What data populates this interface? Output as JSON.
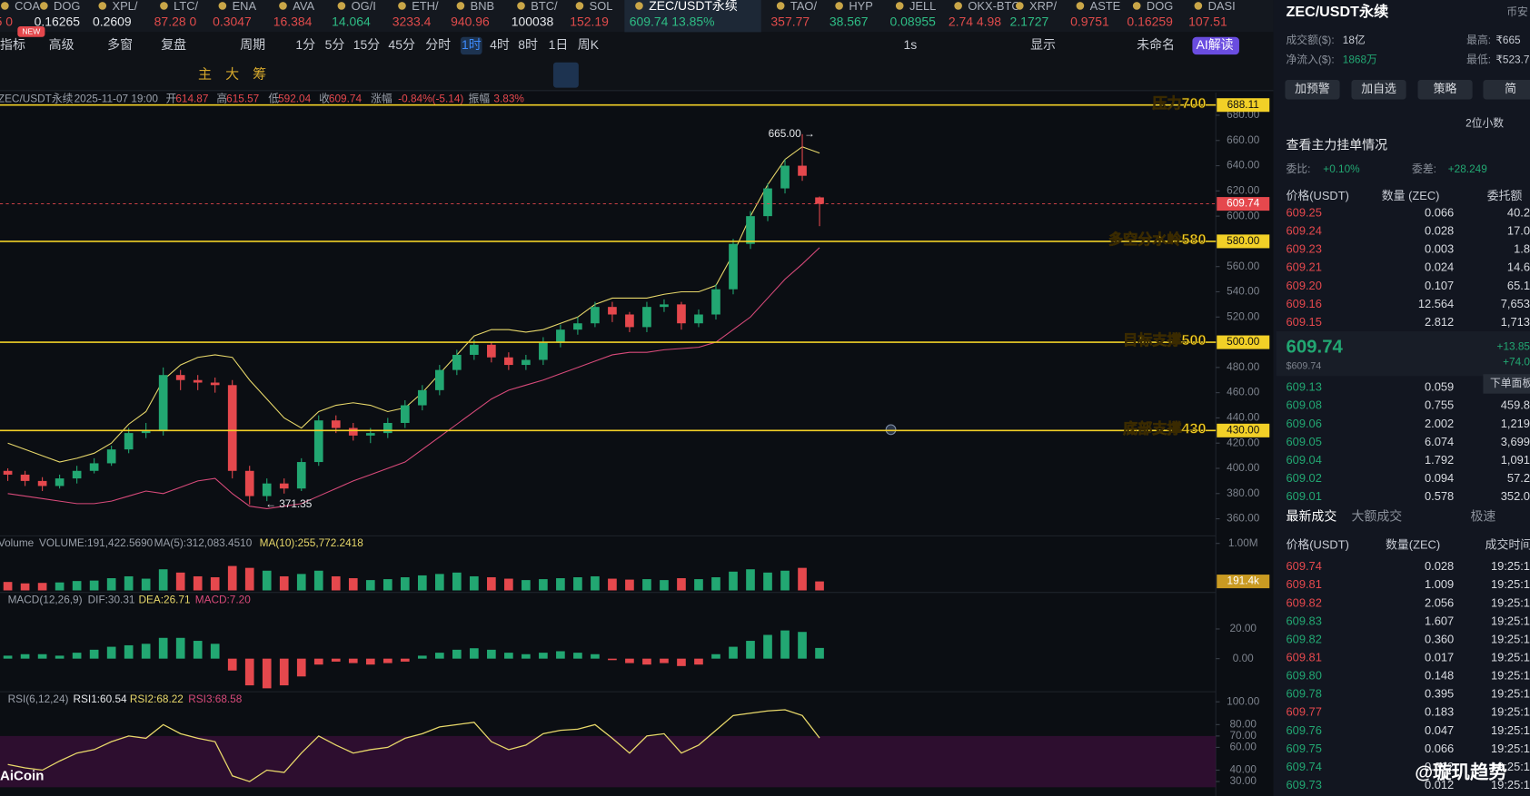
{
  "ticker": [
    {
      "name": "COA",
      "price": "5 0",
      "color": "#e04b4b"
    },
    {
      "name": "DOG",
      "price": "0.16265",
      "color": "#e6e8eb"
    },
    {
      "name": "XPL/",
      "price": "0.2609",
      "color": "#e6e8eb"
    },
    {
      "name": "LTC/",
      "price": "87.28 0",
      "color": "#e04b4b"
    },
    {
      "name": "ENA",
      "price": "0.3047",
      "color": "#e04b4b"
    },
    {
      "name": "AVA",
      "price": "16.384",
      "color": "#e04b4b"
    },
    {
      "name": "OG/I",
      "price": "14.064",
      "color": "#2ebd85"
    },
    {
      "name": "ETH/",
      "price": "3233.4",
      "color": "#e04b4b"
    },
    {
      "name": "BNB",
      "price": "940.96",
      "color": "#e04b4b"
    },
    {
      "name": "BTC/",
      "price": "100038",
      "color": "#e6e8eb"
    },
    {
      "name": "SOL",
      "price": "152.19",
      "color": "#e04b4b"
    },
    {
      "name": "ZEC/USDT永续",
      "price": "609.74 13.85%",
      "color": "#2ebd85"
    },
    {
      "name": "TAO/",
      "price": "357.77",
      "color": "#e04b4b"
    },
    {
      "name": "HYP",
      "price": "38.567",
      "color": "#2ebd85"
    },
    {
      "name": "JELL",
      "price": "0.08955",
      "color": "#2ebd85"
    },
    {
      "name": "OKX-BTC",
      "price": "2.74 4.98",
      "color": "#e04b4b"
    },
    {
      "name": "XRP/",
      "price": "2.1727",
      "color": "#2ebd85"
    },
    {
      "name": "ASTE",
      "price": "0.9751",
      "color": "#e04b4b"
    },
    {
      "name": "DOG",
      "price": "0.16259",
      "color": "#e04b4b"
    },
    {
      "name": "DASI",
      "price": "107.51",
      "color": "#e04b4b"
    }
  ],
  "badge": "NEW",
  "toolbar": {
    "items": [
      "指标",
      "高级",
      "多窗",
      "复盘",
      "周期",
      "1分",
      "5分",
      "15分",
      "45分",
      "分时",
      "1时",
      "4时",
      "8时",
      "1日",
      "周K",
      "1s",
      "显示",
      "未命名",
      "AI解读"
    ],
    "layers": [
      "主",
      "大",
      "筹"
    ]
  },
  "chart_data": [
    {
      "type": "candlestick",
      "info": {
        "symbol": "ZEC/USDT永续",
        "time": "2025-11-07 19:00",
        "open_label": "开",
        "high_label": "高",
        "low_label": "低",
        "close_label": "收",
        "change_label": "涨幅",
        "change": "-0.84%(-5.14)",
        "amp_label": "振幅",
        "amp": "3.83%"
      },
      "candles": {
        "open": [
          398,
          395,
          390,
          386,
          392,
          398,
          404,
          415,
          428,
          430,
          474,
          470,
          468,
          466,
          398,
          378,
          388,
          384,
          405,
          438,
          432,
          426,
          428,
          436,
          450,
          462,
          478,
          490,
          498,
          488,
          482,
          486,
          500,
          510,
          515,
          528,
          522,
          512,
          528,
          530,
          515,
          522,
          542,
          578,
          600,
          622,
          640,
          614.87
        ],
        "high": [
          400,
          398,
          393,
          395,
          402,
          408,
          418,
          432,
          436,
          480,
          478,
          474,
          472,
          470,
          402,
          392,
          392,
          408,
          442,
          442,
          436,
          432,
          440,
          454,
          466,
          482,
          494,
          502,
          500,
          492,
          490,
          504,
          514,
          520,
          532,
          532,
          524,
          532,
          534,
          532,
          526,
          546,
          582,
          604,
          626,
          645,
          665,
          615.57
        ],
        "low": [
          390,
          386,
          382,
          384,
          388,
          396,
          402,
          412,
          424,
          426,
          462,
          462,
          460,
          392,
          371.35,
          374,
          380,
          382,
          402,
          428,
          422,
          420,
          424,
          432,
          446,
          458,
          474,
          486,
          484,
          478,
          478,
          482,
          496,
          506,
          512,
          516,
          508,
          508,
          524,
          510,
          512,
          518,
          538,
          574,
          596,
          618,
          628,
          592.04
        ],
        "close": [
          395,
          390,
          386,
          392,
          398,
          404,
          415,
          428,
          430,
          474,
          470,
          468,
          466,
          398,
          378,
          388,
          384,
          405,
          438,
          432,
          426,
          428,
          436,
          450,
          462,
          478,
          490,
          498,
          488,
          482,
          486,
          500,
          510,
          515,
          528,
          522,
          512,
          528,
          530,
          515,
          522,
          542,
          578,
          600,
          622,
          640,
          632,
          609.74
        ]
      },
      "boll_upper": [
        420,
        415,
        410,
        405,
        408,
        412,
        420,
        435,
        445,
        470,
        482,
        488,
        490,
        488,
        470,
        455,
        440,
        432,
        445,
        450,
        452,
        450,
        445,
        448,
        460,
        475,
        490,
        505,
        510,
        510,
        508,
        510,
        515,
        520,
        530,
        535,
        535,
        535,
        538,
        540,
        540,
        545,
        570,
        600,
        625,
        645,
        655,
        650
      ],
      "boll_lower": [
        380,
        378,
        376,
        374,
        372,
        372,
        374,
        378,
        382,
        380,
        385,
        390,
        392,
        380,
        370,
        368,
        370,
        372,
        378,
        384,
        390,
        395,
        400,
        405,
        415,
        425,
        435,
        445,
        455,
        462,
        466,
        470,
        475,
        480,
        485,
        490,
        492,
        492,
        494,
        495,
        496,
        500,
        510,
        520,
        535,
        550,
        562,
        575
      ],
      "up_color": "#22a772",
      "down_color": "#e5484d",
      "boll_color": "#e8d86a",
      "lower_color": "#d84a7a",
      "levels": [
        {
          "name": "压力700",
          "value": 688.11,
          "label": "688.11"
        },
        {
          "name": "多空分水岭580",
          "value": 580,
          "label": "580.00"
        },
        {
          "name": "目标支撑500",
          "value": 500,
          "label": "500.00"
        },
        {
          "name": "底部支撑430",
          "value": 430,
          "label": "430.00"
        }
      ],
      "level_color": "#f2d027",
      "annotations": [
        {
          "value": 665,
          "label": "665.00 →"
        },
        {
          "value": 371.35,
          "label": "← 371.35"
        }
      ],
      "ylim": [
        348,
        698
      ],
      "yticks": [
        {
          "value": 680,
          "label": "680.00"
        },
        {
          "value": 660,
          "label": "660.00"
        },
        {
          "value": 640,
          "label": "640.00"
        },
        {
          "value": 620,
          "label": "620.00"
        },
        {
          "value": 600,
          "label": "600.00"
        },
        {
          "value": 580,
          "label": "580.00"
        },
        {
          "value": 560,
          "label": "560.00"
        },
        {
          "value": 540,
          "label": "540.00"
        },
        {
          "value": 520,
          "label": "520.00"
        },
        {
          "value": 500,
          "label": "500.00"
        },
        {
          "value": 480,
          "label": "480.00"
        },
        {
          "value": 460,
          "label": "460.00"
        },
        {
          "value": 440,
          "label": "440.00"
        },
        {
          "value": 420,
          "label": "420.00"
        },
        {
          "value": 400,
          "label": "400.00"
        },
        {
          "value": 380,
          "label": "380.00"
        },
        {
          "value": 360,
          "label": "360.00"
        }
      ]
    },
    {
      "type": "bar",
      "info": [
        "Volume",
        "VOLUME:191,422.5690",
        "MA(5):312,083.4510",
        "MA(10):255,772.2418"
      ],
      "values": [
        180000,
        150000,
        160000,
        170000,
        200000,
        210000,
        260000,
        300000,
        250000,
        450000,
        380000,
        300000,
        280000,
        520000,
        480000,
        420000,
        300000,
        350000,
        420000,
        300000,
        260000,
        220000,
        240000,
        280000,
        320000,
        350000,
        380000,
        300000,
        280000,
        250000,
        220000,
        240000,
        260000,
        280000,
        300000,
        250000,
        230000,
        240000,
        220000,
        260000,
        240000,
        280000,
        400000,
        450000,
        380000,
        420000,
        480000,
        191422.569
      ],
      "last_label": "191.4k",
      "ylim": [
        0,
        1140000
      ],
      "yticks": [
        {
          "value": 1000000,
          "label": "1.00M"
        }
      ]
    },
    {
      "type": "bar",
      "info": [
        "MACD(12,26,9)",
        "DIF:30.31",
        "DEA:26.71",
        "MACD:7.20"
      ],
      "values": [
        2,
        3,
        3,
        2,
        4,
        6,
        8,
        9,
        10,
        14,
        14,
        12,
        10,
        -8,
        -18,
        -20,
        -18,
        -12,
        -4,
        -2,
        -3,
        -4,
        -3,
        -2,
        2,
        4,
        6,
        7,
        6,
        4,
        3,
        4,
        5,
        4,
        3,
        -1,
        -3,
        -4,
        -3,
        -5,
        -4,
        3,
        8,
        12,
        16,
        19,
        18,
        7.2
      ],
      "ylim": [
        -21,
        44
      ],
      "yticks": [
        {
          "value": 20,
          "label": "20.00"
        },
        {
          "value": 0,
          "label": "0.00"
        }
      ]
    },
    {
      "type": "line",
      "info": [
        "RSI(6,12,24)",
        "RSI1:60.54",
        "RSI2:68.22",
        "RSI3:68.58"
      ],
      "values": [
        45,
        42,
        40,
        48,
        55,
        58,
        65,
        70,
        68,
        80,
        72,
        68,
        65,
        35,
        30,
        40,
        38,
        55,
        70,
        62,
        55,
        58,
        60,
        68,
        72,
        78,
        80,
        82,
        65,
        58,
        62,
        72,
        75,
        76,
        80,
        68,
        55,
        70,
        72,
        55,
        62,
        75,
        88,
        90,
        92,
        93,
        88,
        68.22
      ],
      "color": "#e8d86a",
      "ylim": [
        25,
        108
      ],
      "yticks": [
        {
          "value": 100,
          "label": "100.00"
        },
        {
          "value": 80,
          "label": "80.00"
        },
        {
          "value": 70,
          "label": "70.00"
        },
        {
          "value": 60,
          "label": "60.00"
        },
        {
          "value": 40,
          "label": "40.00"
        },
        {
          "value": 30,
          "label": "30.00"
        }
      ]
    }
  ],
  "side": {
    "title": "ZEC/USDT永续",
    "exchange": "币安",
    "stats": [
      {
        "label": "成交额($):",
        "value": "18亿"
      },
      {
        "label": "最高:",
        "value": "₹665"
      },
      {
        "label": "净流入($):",
        "value": "1868万"
      },
      {
        "label": "最低:",
        "value": "₹523.7"
      }
    ],
    "buttons": [
      "加预警",
      "加自选",
      "策略",
      "简"
    ],
    "decimals": "2位小数",
    "depth_link": "查看主力挂单情况",
    "ratio": {
      "label": "委比:",
      "value": "+0.10%"
    },
    "diff": {
      "label": "委差:",
      "value": "+28.249"
    },
    "book_header": [
      "价格(USDT)",
      "数量 (ZEC)",
      "委托额"
    ],
    "asks": [
      [
        "609.25",
        "0.066",
        "40.2"
      ],
      [
        "609.24",
        "0.028",
        "17.0"
      ],
      [
        "609.23",
        "0.003",
        "1.8"
      ],
      [
        "609.21",
        "0.024",
        "14.6"
      ],
      [
        "609.20",
        "0.107",
        "65.1"
      ],
      [
        "609.16",
        "12.564",
        "7,653"
      ],
      [
        "609.15",
        "2.812",
        "1,713"
      ]
    ],
    "last": {
      "price": "609.74",
      "usd": "$609.74",
      "change": "+13.85",
      "change_abs": "+74.0"
    },
    "order_panel": "下单面板",
    "bids": [
      [
        "609.13",
        "0.059"
      ],
      [
        "609.08",
        "0.755",
        "459.8"
      ],
      [
        "609.06",
        "2.002",
        "1,219"
      ],
      [
        "609.05",
        "6.074",
        "3,699"
      ],
      [
        "609.04",
        "1.792",
        "1,091"
      ],
      [
        "609.02",
        "0.094",
        "57.2"
      ],
      [
        "609.01",
        "0.578",
        "352.0"
      ]
    ],
    "trade_tabs": [
      "最新成交",
      "大额成交",
      "极速"
    ],
    "trade_header": [
      "价格(USDT)",
      "数量(ZEC)",
      "成交时间"
    ],
    "trades": [
      {
        "price": "609.74",
        "qty": "0.028",
        "time": "19:25:1",
        "color": "#e5484d"
      },
      {
        "price": "609.81",
        "qty": "1.009",
        "time": "19:25:1",
        "color": "#e5484d"
      },
      {
        "price": "609.82",
        "qty": "2.056",
        "time": "19:25:1",
        "color": "#e5484d"
      },
      {
        "price": "609.83",
        "qty": "1.607",
        "time": "19:25:1",
        "color": "#22a772"
      },
      {
        "price": "609.82",
        "qty": "0.360",
        "time": "19:25:1",
        "color": "#22a772"
      },
      {
        "price": "609.81",
        "qty": "0.017",
        "time": "19:25:1",
        "color": "#e5484d"
      },
      {
        "price": "609.80",
        "qty": "0.148",
        "time": "19:25:1",
        "color": "#22a772"
      },
      {
        "price": "609.78",
        "qty": "0.395",
        "time": "19:25:1",
        "color": "#22a772"
      },
      {
        "price": "609.77",
        "qty": "0.183",
        "time": "19:25:1",
        "color": "#e5484d"
      },
      {
        "price": "609.76",
        "qty": "0.047",
        "time": "19:25:1",
        "color": "#22a772"
      },
      {
        "price": "609.75",
        "qty": "0.066",
        "time": "19:25:1",
        "color": "#22a772"
      },
      {
        "price": "609.74",
        "qty": "0.012",
        "time": "19:25:1",
        "color": "#22a772"
      },
      {
        "price": "609.73",
        "qty": "0.012",
        "time": "19:25:1",
        "color": "#22a772"
      }
    ]
  },
  "watermark": "@璇玑趋势",
  "brand": "AiCoin"
}
